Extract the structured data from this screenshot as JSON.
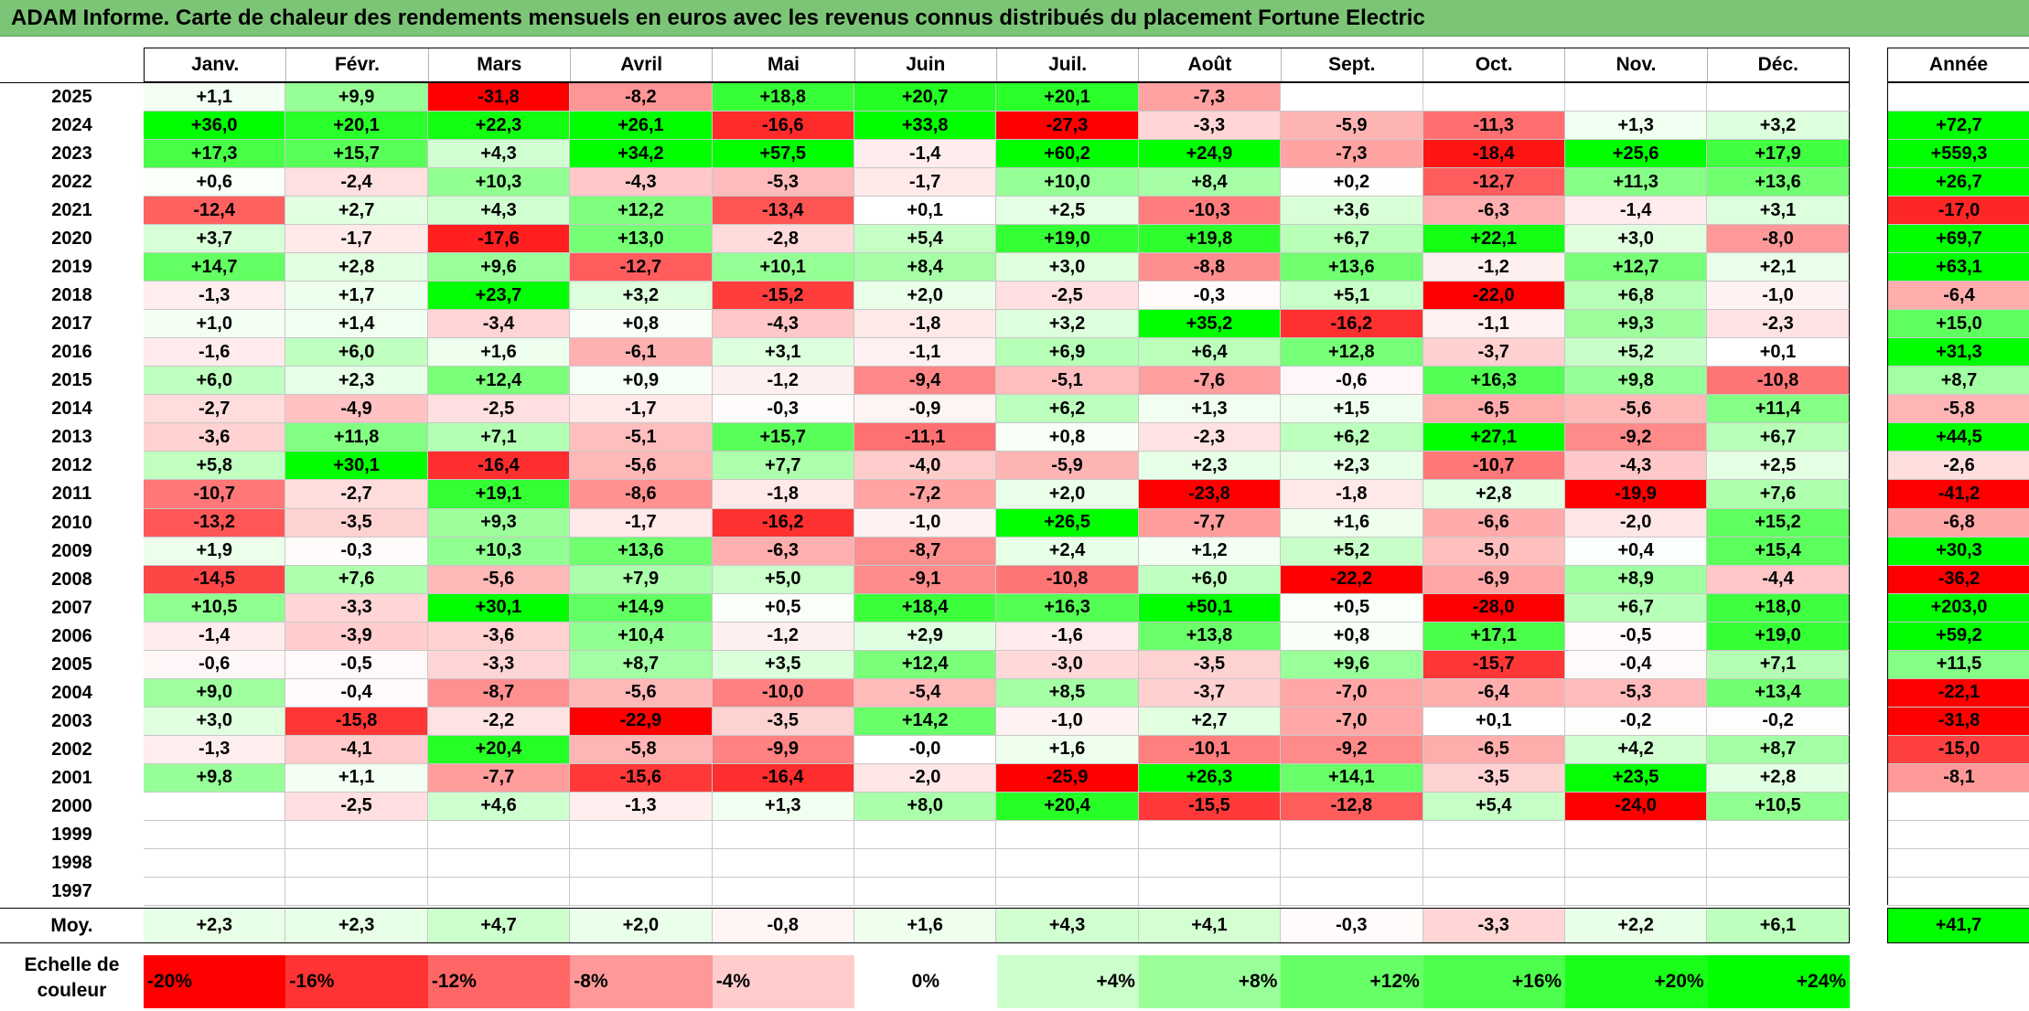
{
  "title": "ADAM Informe. Carte de chaleur des rendements mensuels en euros avec les revenus connus distribués du placement Fortune Electric",
  "year_header": "Année",
  "avg_label": "Moy.",
  "scale_label_line1": "Echelle de",
  "scale_label_line2": "couleur",
  "chart_data": {
    "type": "heatmap",
    "title": "ADAM Informe. Carte de chaleur des rendements mensuels en euros avec les revenus connus distribués du placement Fortune Electric",
    "months": [
      "Janv.",
      "Févr.",
      "Mars",
      "Avril",
      "Mai",
      "Juin",
      "Juil.",
      "Août",
      "Sept.",
      "Oct.",
      "Nov.",
      "Déc."
    ],
    "rows": [
      {
        "year": "2025",
        "values": [
          1.1,
          9.9,
          -31.8,
          -8.2,
          18.8,
          20.7,
          20.1,
          -7.3,
          null,
          null,
          null,
          null
        ],
        "annual": null
      },
      {
        "year": "2024",
        "values": [
          36.0,
          20.1,
          22.3,
          26.1,
          -16.6,
          33.8,
          -27.3,
          -3.3,
          -5.9,
          -11.3,
          1.3,
          3.2
        ],
        "annual": 72.7
      },
      {
        "year": "2023",
        "values": [
          17.3,
          15.7,
          4.3,
          34.2,
          57.5,
          -1.4,
          60.2,
          24.9,
          -7.3,
          -18.4,
          25.6,
          17.9
        ],
        "annual": 559.3
      },
      {
        "year": "2022",
        "values": [
          0.6,
          -2.4,
          10.3,
          -4.3,
          -5.3,
          -1.7,
          10.0,
          8.4,
          0.2,
          -12.7,
          11.3,
          13.6
        ],
        "annual": 26.7
      },
      {
        "year": "2021",
        "values": [
          -12.4,
          2.7,
          4.3,
          12.2,
          -13.4,
          0.1,
          2.5,
          -10.3,
          3.6,
          -6.3,
          -1.4,
          3.1
        ],
        "annual": -17.0
      },
      {
        "year": "2020",
        "values": [
          3.7,
          -1.7,
          -17.6,
          13.0,
          -2.8,
          5.4,
          19.0,
          19.8,
          6.7,
          22.1,
          3.0,
          -8.0
        ],
        "annual": 69.7
      },
      {
        "year": "2019",
        "values": [
          14.7,
          2.8,
          9.6,
          -12.7,
          10.1,
          8.4,
          3.0,
          -8.8,
          13.6,
          -1.2,
          12.7,
          2.1
        ],
        "annual": 63.1
      },
      {
        "year": "2018",
        "values": [
          -1.3,
          1.7,
          23.7,
          3.2,
          -15.2,
          2.0,
          -2.5,
          -0.3,
          5.1,
          -22.0,
          6.8,
          -1.0
        ],
        "annual": -6.4
      },
      {
        "year": "2017",
        "values": [
          1.0,
          1.4,
          -3.4,
          0.8,
          -4.3,
          -1.8,
          3.2,
          35.2,
          -16.2,
          -1.1,
          9.3,
          -2.3
        ],
        "annual": 15.0
      },
      {
        "year": "2016",
        "values": [
          -1.6,
          6.0,
          1.6,
          -6.1,
          3.1,
          -1.1,
          6.9,
          6.4,
          12.8,
          -3.7,
          5.2,
          0.1
        ],
        "annual": 31.3
      },
      {
        "year": "2015",
        "values": [
          6.0,
          2.3,
          12.4,
          0.9,
          -1.2,
          -9.4,
          -5.1,
          -7.6,
          -0.6,
          16.3,
          9.8,
          -10.8
        ],
        "annual": 8.7
      },
      {
        "year": "2014",
        "values": [
          -2.7,
          -4.9,
          -2.5,
          -1.7,
          -0.3,
          -0.9,
          6.2,
          1.3,
          1.5,
          -6.5,
          -5.6,
          11.4
        ],
        "annual": -5.8
      },
      {
        "year": "2013",
        "values": [
          -3.6,
          11.8,
          7.1,
          -5.1,
          15.7,
          -11.1,
          0.8,
          -2.3,
          6.2,
          27.1,
          -9.2,
          6.7
        ],
        "annual": 44.5
      },
      {
        "year": "2012",
        "values": [
          5.8,
          30.1,
          -16.4,
          -5.6,
          7.7,
          -4.0,
          -5.9,
          2.3,
          2.3,
          -10.7,
          -4.3,
          2.5
        ],
        "annual": -2.6
      },
      {
        "year": "2011",
        "values": [
          -10.7,
          -2.7,
          19.1,
          -8.6,
          -1.8,
          -7.2,
          2.0,
          -23.8,
          -1.8,
          2.8,
          -19.9,
          7.6
        ],
        "annual": -41.2
      },
      {
        "year": "2010",
        "values": [
          -13.2,
          -3.5,
          9.3,
          -1.7,
          -16.2,
          -1.0,
          26.5,
          -7.7,
          1.6,
          -6.6,
          -2.0,
          15.2
        ],
        "annual": -6.8
      },
      {
        "year": "2009",
        "values": [
          1.9,
          -0.3,
          10.3,
          13.6,
          -6.3,
          -8.7,
          2.4,
          1.2,
          5.2,
          -5.0,
          0.4,
          15.4
        ],
        "annual": 30.3
      },
      {
        "year": "2008",
        "values": [
          -14.5,
          7.6,
          -5.6,
          7.9,
          5.0,
          -9.1,
          -10.8,
          6.0,
          -22.2,
          -6.9,
          8.9,
          -4.4
        ],
        "annual": -36.2
      },
      {
        "year": "2007",
        "values": [
          10.5,
          -3.3,
          30.1,
          14.9,
          0.5,
          18.4,
          16.3,
          50.1,
          0.5,
          -28.0,
          6.7,
          18.0
        ],
        "annual": 203.0
      },
      {
        "year": "2006",
        "values": [
          -1.4,
          -3.9,
          -3.6,
          10.4,
          -1.2,
          2.9,
          -1.6,
          13.8,
          0.8,
          17.1,
          -0.5,
          19.0
        ],
        "annual": 59.2
      },
      {
        "year": "2005",
        "values": [
          -0.6,
          -0.5,
          -3.3,
          8.7,
          3.5,
          12.4,
          -3.0,
          -3.5,
          9.6,
          -15.7,
          -0.4,
          7.1
        ],
        "annual": 11.5
      },
      {
        "year": "2004",
        "values": [
          9.0,
          -0.4,
          -8.7,
          -5.6,
          -10.0,
          -5.4,
          8.5,
          -3.7,
          -7.0,
          -6.4,
          -5.3,
          13.4
        ],
        "annual": -22.1
      },
      {
        "year": "2003",
        "values": [
          3.0,
          -15.8,
          -2.2,
          -22.9,
          -3.5,
          14.2,
          -1.0,
          2.7,
          -7.0,
          0.1,
          -0.2,
          -0.2
        ],
        "annual": -31.8
      },
      {
        "year": "2002",
        "values": [
          -1.3,
          -4.1,
          20.4,
          -5.8,
          -9.9,
          -0.0,
          1.6,
          -10.1,
          -9.2,
          -6.5,
          4.2,
          8.7
        ],
        "annual": -15.0
      },
      {
        "year": "2001",
        "values": [
          9.8,
          1.1,
          -7.7,
          -15.6,
          -16.4,
          -2.0,
          -25.9,
          26.3,
          14.1,
          -3.5,
          23.5,
          2.8
        ],
        "annual": -8.1
      },
      {
        "year": "2000",
        "values": [
          null,
          -2.5,
          4.6,
          -1.3,
          1.3,
          8.0,
          20.4,
          -15.5,
          -12.8,
          5.4,
          -24.0,
          10.5
        ],
        "annual": null
      },
      {
        "year": "1999",
        "values": [
          null,
          null,
          null,
          null,
          null,
          null,
          null,
          null,
          null,
          null,
          null,
          null
        ],
        "annual": null
      },
      {
        "year": "1998",
        "values": [
          null,
          null,
          null,
          null,
          null,
          null,
          null,
          null,
          null,
          null,
          null,
          null
        ],
        "annual": null
      },
      {
        "year": "1997",
        "values": [
          null,
          null,
          null,
          null,
          null,
          null,
          null,
          null,
          null,
          null,
          null,
          null
        ],
        "annual": null
      }
    ],
    "averages": {
      "values": [
        2.3,
        2.3,
        4.7,
        2.0,
        -0.8,
        1.6,
        4.3,
        4.1,
        -0.3,
        -3.3,
        2.2,
        6.1
      ],
      "annual": 41.7
    },
    "color_scale": [
      {
        "label": "-20%",
        "value": -20,
        "color": "#ff0000"
      },
      {
        "label": "-16%",
        "value": -16,
        "color": "#ff3333"
      },
      {
        "label": "-12%",
        "value": -12,
        "color": "#ff6666"
      },
      {
        "label": "-8%",
        "value": -8,
        "color": "#ff9999"
      },
      {
        "label": "-4%",
        "value": -4,
        "color": "#ffcccc"
      },
      {
        "label": "0%",
        "value": 0,
        "color": "#ffffff"
      },
      {
        "label": "+4%",
        "value": 4,
        "color": "#ccffcc"
      },
      {
        "label": "+8%",
        "value": 8,
        "color": "#99ff99"
      },
      {
        "label": "+12%",
        "value": 12,
        "color": "#66ff66"
      },
      {
        "label": "+16%",
        "value": 16,
        "color": "#4dff4d"
      },
      {
        "label": "+20%",
        "value": 20,
        "color": "#1aff1a"
      },
      {
        "label": "+24%",
        "value": 24,
        "color": "#00ff00"
      }
    ]
  }
}
